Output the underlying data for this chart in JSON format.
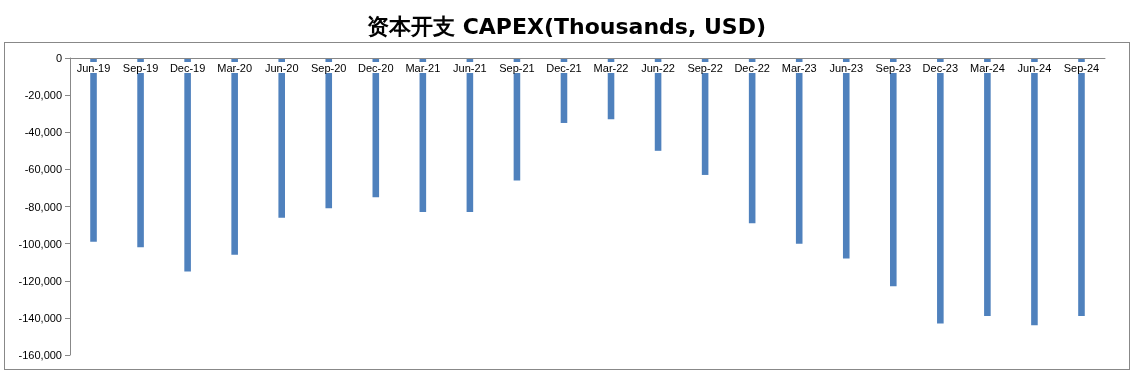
{
  "chart_data": {
    "type": "bar",
    "title": "资本开支 CAPEX(Thousands, USD)",
    "categories": [
      "Jun-19",
      "Sep-19",
      "Dec-19",
      "Mar-20",
      "Jun-20",
      "Sep-20",
      "Dec-20",
      "Mar-21",
      "Jun-21",
      "Sep-21",
      "Dec-21",
      "Mar-22",
      "Jun-22",
      "Sep-22",
      "Dec-22",
      "Mar-23",
      "Jun-23",
      "Sep-23",
      "Dec-23",
      "Mar-24",
      "Jun-24",
      "Sep-24"
    ],
    "values": [
      -99000,
      -102000,
      -115000,
      -106000,
      -86000,
      -81000,
      -75000,
      -83000,
      -83000,
      -66000,
      -35000,
      -33000,
      -50000,
      -63000,
      -89000,
      -100000,
      -108000,
      -123000,
      -143000,
      -139000,
      -144000,
      -139000
    ],
    "color": "#4f81bd",
    "ylim": [
      -160000,
      0
    ],
    "yticks": [
      {
        "value": -160000,
        "label": "-160,000"
      },
      {
        "value": -140000,
        "label": "-140,000"
      },
      {
        "value": -120000,
        "label": "-120,000"
      },
      {
        "value": -100000,
        "label": "-100,000"
      },
      {
        "value": -80000,
        "label": "-80,000"
      },
      {
        "value": -60000,
        "label": "-60,000"
      },
      {
        "value": -40000,
        "label": "-40,000"
      },
      {
        "value": -20000,
        "label": "-20,000"
      },
      0
    ],
    "grid": false
  }
}
